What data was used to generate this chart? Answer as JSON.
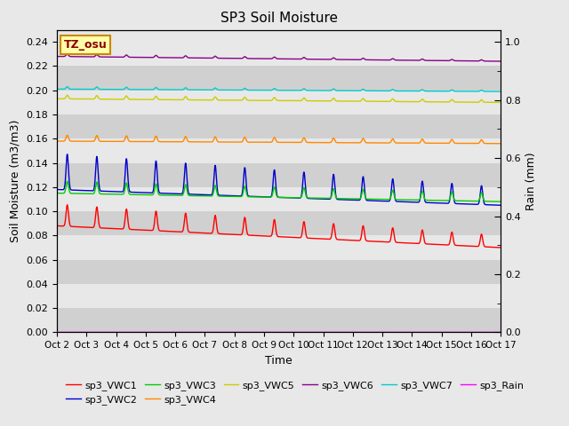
{
  "title": "SP3 Soil Moisture",
  "xlabel": "Time",
  "ylabel_left": "Soil Moisture (m3/m3)",
  "ylabel_right": "Rain (mm)",
  "ylim_left": [
    0.0,
    0.25
  ],
  "ylim_right": [
    0.0,
    1.0417
  ],
  "xtick_labels": [
    "Oct 2",
    "Oct 3",
    "Oct 4",
    "Oct 5",
    "Oct 6",
    "Oct 7",
    "Oct 8",
    "Oct 9",
    "Oct 10",
    "Oct 11",
    "Oct 12",
    "Oct 13",
    "Oct 14",
    "Oct 15",
    "Oct 16",
    "Oct 17"
  ],
  "xtick_positions": [
    0,
    1,
    2,
    3,
    4,
    5,
    6,
    7,
    8,
    9,
    10,
    11,
    12,
    13,
    14,
    15
  ],
  "ytick_left": [
    0.0,
    0.02,
    0.04,
    0.06,
    0.08,
    0.1,
    0.12,
    0.14,
    0.16,
    0.18,
    0.2,
    0.22,
    0.24
  ],
  "ytick_right_major": [
    0.0,
    0.2,
    0.4,
    0.6,
    0.8,
    1.0
  ],
  "ytick_right_minor_vals": [
    0.1,
    0.3,
    0.5,
    0.7,
    0.9
  ],
  "tz_label": "TZ_osu",
  "colors": {
    "sp3_VWC1": "#FF0000",
    "sp3_VWC2": "#0000CC",
    "sp3_VWC3": "#00CC00",
    "sp3_VWC4": "#FF8800",
    "sp3_VWC5": "#CCCC00",
    "sp3_VWC6": "#880088",
    "sp3_VWC7": "#00CCCC",
    "sp3_Rain": "#FF00FF"
  },
  "legend_row1": [
    "sp3_VWC1",
    "sp3_VWC2",
    "sp3_VWC3",
    "sp3_VWC4",
    "sp3_VWC5",
    "sp3_VWC6"
  ],
  "legend_row2": [
    "sp3_VWC7",
    "sp3_Rain"
  ],
  "bg_color": "#E8E8E8",
  "band_dark": "#D0D0D0",
  "band_light": "#E8E8E8"
}
